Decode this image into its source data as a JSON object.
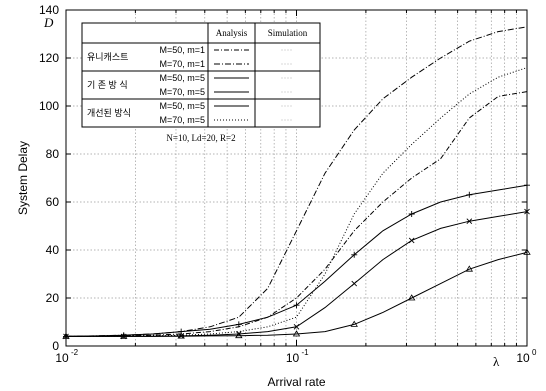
{
  "chart_data": {
    "type": "line",
    "xscale": "log",
    "xlim": [
      0.01,
      1
    ],
    "ylim": [
      0,
      140
    ],
    "grid": true,
    "xlabel": "Arrival rate",
    "ylabel": "System Delay",
    "x_symbol": "λ",
    "y_symbol": "D",
    "x_tick_labels": [
      "10",
      "-2",
      "10",
      "-1",
      "10",
      "0"
    ],
    "y_ticks": [
      0,
      20,
      40,
      60,
      80,
      100,
      120,
      140
    ],
    "legend_headers": [
      "Analysis",
      "Simulation"
    ],
    "legend_groups": [
      "유니캐스트",
      "기 존 방 식",
      "개선된 방식"
    ],
    "legend_rows": [
      "M=50, m=1",
      "M=70, m=1",
      "M=50, m=5",
      "M=70, m=5",
      "M=50, m=5",
      "M=70, m=5"
    ],
    "legend_note": "N=10, Ld=20, R=2",
    "x": [
      0.01,
      0.0134,
      0.0178,
      0.0237,
      0.0316,
      0.0422,
      0.0562,
      0.075,
      0.1,
      0.133,
      0.178,
      0.237,
      0.316,
      0.422,
      0.562,
      0.75,
      1.0
    ],
    "series": [
      {
        "group": "유니캐스트",
        "row": "M=50, m=1",
        "style": "analysis",
        "values": [
          4,
          4,
          4.2,
          4.5,
          5,
          6,
          8,
          12,
          20,
          32,
          48,
          60,
          70,
          78,
          95,
          104,
          106
        ]
      },
      {
        "group": "유니캐스트",
        "row": "M=70, m=1",
        "style": "analysis",
        "values": [
          4,
          4.2,
          4.5,
          5,
          6,
          8,
          12,
          24,
          48,
          72,
          90,
          103,
          112,
          120,
          127,
          131,
          133
        ]
      },
      {
        "group": "기 존 방 식",
        "row": "M=50, m=5",
        "style": "analysis",
        "values": [
          4,
          4,
          4,
          4.1,
          4.2,
          4.5,
          5,
          6,
          8,
          16,
          26,
          36,
          44,
          49,
          52,
          54,
          56
        ]
      },
      {
        "group": "기 존 방 식",
        "row": "M=70, m=5",
        "style": "analysis",
        "values": [
          4,
          4.2,
          4.5,
          5,
          6,
          7,
          9,
          12,
          17,
          27,
          38,
          48,
          55,
          60,
          63,
          65,
          67
        ]
      },
      {
        "group": "개선된 방식",
        "row": "M=50, m=5",
        "style": "analysis",
        "values": [
          4,
          4,
          4,
          4,
          4.1,
          4.2,
          4.3,
          4.5,
          5,
          6,
          9,
          14,
          20,
          26,
          32,
          36,
          39
        ]
      },
      {
        "group": "개선된 방식",
        "row": "M=70, m=5",
        "style": "analysis",
        "values": [
          4,
          4,
          4.1,
          4.2,
          4.5,
          5,
          6,
          8,
          12,
          30,
          55,
          72,
          84,
          95,
          105,
          112,
          116
        ]
      }
    ]
  }
}
